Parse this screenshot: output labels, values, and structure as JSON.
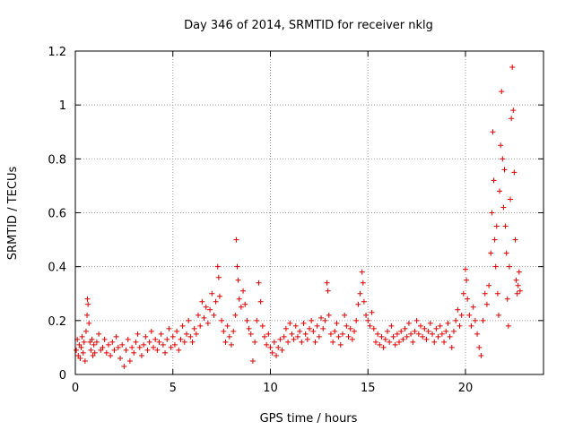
{
  "chart_data": {
    "type": "scatter",
    "title": "Day 346 of 2014, SRMTID for receiver nklg",
    "xlabel": "GPS time / hours",
    "ylabel": "SRMTID / TECUs",
    "xlim": [
      0,
      24
    ],
    "ylim": [
      0,
      1.2
    ],
    "x_ticks": [
      0,
      5,
      10,
      15,
      20
    ],
    "x_tick_labels": [
      "0",
      "5",
      "10",
      "15",
      "20"
    ],
    "y_ticks": [
      0,
      0.2,
      0.4,
      0.6,
      0.8,
      1,
      1.2
    ],
    "y_tick_labels": [
      "0",
      "0.2",
      "0.4",
      "0.6",
      "0.8",
      "1",
      "1.2"
    ],
    "grid": true,
    "marker": "+",
    "color": "#e00000",
    "series": [
      {
        "name": "SRMTID",
        "points": [
          [
            0.05,
            0.09
          ],
          [
            0.1,
            0.13
          ],
          [
            0.15,
            0.07
          ],
          [
            0.2,
            0.11
          ],
          [
            0.25,
            0.06
          ],
          [
            0.3,
            0.1
          ],
          [
            0.35,
            0.14
          ],
          [
            0.4,
            0.08
          ],
          [
            0.45,
            0.12
          ],
          [
            0.5,
            0.05
          ],
          [
            0.55,
            0.16
          ],
          [
            0.6,
            0.22
          ],
          [
            0.62,
            0.28
          ],
          [
            0.65,
            0.26
          ],
          [
            0.7,
            0.19
          ],
          [
            0.75,
            0.12
          ],
          [
            0.8,
            0.09
          ],
          [
            0.85,
            0.13
          ],
          [
            0.9,
            0.07
          ],
          [
            0.95,
            0.11
          ],
          [
            1.0,
            0.08
          ],
          [
            1.1,
            0.12
          ],
          [
            1.2,
            0.15
          ],
          [
            1.3,
            0.09
          ],
          [
            1.4,
            0.1
          ],
          [
            1.5,
            0.13
          ],
          [
            1.6,
            0.08
          ],
          [
            1.7,
            0.11
          ],
          [
            1.8,
            0.07
          ],
          [
            1.9,
            0.12
          ],
          [
            2.0,
            0.09
          ],
          [
            2.1,
            0.14
          ],
          [
            2.2,
            0.1
          ],
          [
            2.3,
            0.06
          ],
          [
            2.4,
            0.11
          ],
          [
            2.5,
            0.03
          ],
          [
            2.6,
            0.09
          ],
          [
            2.7,
            0.13
          ],
          [
            2.8,
            0.05
          ],
          [
            2.9,
            0.1
          ],
          [
            3.0,
            0.08
          ],
          [
            3.1,
            0.12
          ],
          [
            3.2,
            0.15
          ],
          [
            3.3,
            0.1
          ],
          [
            3.4,
            0.07
          ],
          [
            3.5,
            0.11
          ],
          [
            3.6,
            0.14
          ],
          [
            3.7,
            0.09
          ],
          [
            3.8,
            0.12
          ],
          [
            3.9,
            0.16
          ],
          [
            4.0,
            0.1
          ],
          [
            4.1,
            0.13
          ],
          [
            4.2,
            0.09
          ],
          [
            4.3,
            0.12
          ],
          [
            4.4,
            0.15
          ],
          [
            4.5,
            0.11
          ],
          [
            4.6,
            0.08
          ],
          [
            4.7,
            0.13
          ],
          [
            4.8,
            0.17
          ],
          [
            4.9,
            0.1
          ],
          [
            5.0,
            0.14
          ],
          [
            5.1,
            0.11
          ],
          [
            5.2,
            0.16
          ],
          [
            5.3,
            0.09
          ],
          [
            5.4,
            0.13
          ],
          [
            5.5,
            0.18
          ],
          [
            5.6,
            0.12
          ],
          [
            5.7,
            0.15
          ],
          [
            5.8,
            0.2
          ],
          [
            5.9,
            0.14
          ],
          [
            6.0,
            0.12
          ],
          [
            6.1,
            0.17
          ],
          [
            6.2,
            0.15
          ],
          [
            6.3,
            0.22
          ],
          [
            6.4,
            0.18
          ],
          [
            6.5,
            0.27
          ],
          [
            6.6,
            0.21
          ],
          [
            6.7,
            0.25
          ],
          [
            6.8,
            0.19
          ],
          [
            6.9,
            0.24
          ],
          [
            7.0,
            0.3
          ],
          [
            7.1,
            0.22
          ],
          [
            7.2,
            0.27
          ],
          [
            7.3,
            0.4
          ],
          [
            7.35,
            0.36
          ],
          [
            7.4,
            0.29
          ],
          [
            7.5,
            0.2
          ],
          [
            7.6,
            0.16
          ],
          [
            7.7,
            0.12
          ],
          [
            7.8,
            0.18
          ],
          [
            7.9,
            0.14
          ],
          [
            8.0,
            0.11
          ],
          [
            8.1,
            0.16
          ],
          [
            8.2,
            0.22
          ],
          [
            8.25,
            0.5
          ],
          [
            8.3,
            0.4
          ],
          [
            8.35,
            0.35
          ],
          [
            8.4,
            0.28
          ],
          [
            8.5,
            0.25
          ],
          [
            8.6,
            0.31
          ],
          [
            8.7,
            0.26
          ],
          [
            8.8,
            0.2
          ],
          [
            8.9,
            0.17
          ],
          [
            9.0,
            0.15
          ],
          [
            9.1,
            0.05
          ],
          [
            9.2,
            0.12
          ],
          [
            9.3,
            0.2
          ],
          [
            9.4,
            0.34
          ],
          [
            9.5,
            0.27
          ],
          [
            9.6,
            0.18
          ],
          [
            9.7,
            0.14
          ],
          [
            9.8,
            0.11
          ],
          [
            9.9,
            0.15
          ],
          [
            10.0,
            0.1
          ],
          [
            10.1,
            0.08
          ],
          [
            10.2,
            0.12
          ],
          [
            10.3,
            0.07
          ],
          [
            10.4,
            0.1
          ],
          [
            10.5,
            0.13
          ],
          [
            10.6,
            0.09
          ],
          [
            10.7,
            0.14
          ],
          [
            10.8,
            0.17
          ],
          [
            10.9,
            0.12
          ],
          [
            11.0,
            0.19
          ],
          [
            11.1,
            0.15
          ],
          [
            11.2,
            0.13
          ],
          [
            11.3,
            0.18
          ],
          [
            11.4,
            0.14
          ],
          [
            11.5,
            0.16
          ],
          [
            11.6,
            0.12
          ],
          [
            11.7,
            0.19
          ],
          [
            11.8,
            0.15
          ],
          [
            11.9,
            0.13
          ],
          [
            12.0,
            0.17
          ],
          [
            12.1,
            0.2
          ],
          [
            12.2,
            0.16
          ],
          [
            12.3,
            0.12
          ],
          [
            12.4,
            0.18
          ],
          [
            12.5,
            0.14
          ],
          [
            12.6,
            0.21
          ],
          [
            12.7,
            0.17
          ],
          [
            12.8,
            0.2
          ],
          [
            12.9,
            0.34
          ],
          [
            12.95,
            0.31
          ],
          [
            13.0,
            0.22
          ],
          [
            13.1,
            0.15
          ],
          [
            13.2,
            0.12
          ],
          [
            13.3,
            0.16
          ],
          [
            13.4,
            0.19
          ],
          [
            13.5,
            0.14
          ],
          [
            13.6,
            0.11
          ],
          [
            13.7,
            0.15
          ],
          [
            13.8,
            0.22
          ],
          [
            13.9,
            0.18
          ],
          [
            14.0,
            0.14
          ],
          [
            14.1,
            0.17
          ],
          [
            14.2,
            0.13
          ],
          [
            14.3,
            0.16
          ],
          [
            14.4,
            0.2
          ],
          [
            14.5,
            0.26
          ],
          [
            14.6,
            0.3
          ],
          [
            14.7,
            0.38
          ],
          [
            14.75,
            0.34
          ],
          [
            14.8,
            0.27
          ],
          [
            14.9,
            0.22
          ],
          [
            15.0,
            0.2
          ],
          [
            15.1,
            0.18
          ],
          [
            15.2,
            0.23
          ],
          [
            15.3,
            0.17
          ],
          [
            15.4,
            0.12
          ],
          [
            15.5,
            0.15
          ],
          [
            15.6,
            0.11
          ],
          [
            15.7,
            0.14
          ],
          [
            15.8,
            0.1
          ],
          [
            15.9,
            0.13
          ],
          [
            16.0,
            0.16
          ],
          [
            16.1,
            0.12
          ],
          [
            16.2,
            0.18
          ],
          [
            16.3,
            0.14
          ],
          [
            16.4,
            0.11
          ],
          [
            16.5,
            0.15
          ],
          [
            16.6,
            0.12
          ],
          [
            16.7,
            0.16
          ],
          [
            16.8,
            0.13
          ],
          [
            16.9,
            0.17
          ],
          [
            17.0,
            0.14
          ],
          [
            17.1,
            0.19
          ],
          [
            17.2,
            0.15
          ],
          [
            17.3,
            0.12
          ],
          [
            17.4,
            0.16
          ],
          [
            17.5,
            0.2
          ],
          [
            17.6,
            0.15
          ],
          [
            17.7,
            0.18
          ],
          [
            17.8,
            0.14
          ],
          [
            17.9,
            0.17
          ],
          [
            18.0,
            0.13
          ],
          [
            18.1,
            0.16
          ],
          [
            18.2,
            0.19
          ],
          [
            18.3,
            0.15
          ],
          [
            18.4,
            0.12
          ],
          [
            18.5,
            0.17
          ],
          [
            18.6,
            0.14
          ],
          [
            18.7,
            0.18
          ],
          [
            18.8,
            0.15
          ],
          [
            18.9,
            0.12
          ],
          [
            19.0,
            0.16
          ],
          [
            19.1,
            0.19
          ],
          [
            19.2,
            0.14
          ],
          [
            19.3,
            0.1
          ],
          [
            19.4,
            0.16
          ],
          [
            19.5,
            0.2
          ],
          [
            19.6,
            0.24
          ],
          [
            19.7,
            0.18
          ],
          [
            19.8,
            0.22
          ],
          [
            19.9,
            0.3
          ],
          [
            20.0,
            0.39
          ],
          [
            20.05,
            0.35
          ],
          [
            20.1,
            0.28
          ],
          [
            20.2,
            0.22
          ],
          [
            20.3,
            0.18
          ],
          [
            20.4,
            0.25
          ],
          [
            20.5,
            0.2
          ],
          [
            20.6,
            0.15
          ],
          [
            20.7,
            0.1
          ],
          [
            20.8,
            0.07
          ],
          [
            20.9,
            0.2
          ],
          [
            21.0,
            0.3
          ],
          [
            21.1,
            0.26
          ],
          [
            21.2,
            0.33
          ],
          [
            21.3,
            0.45
          ],
          [
            21.35,
            0.6
          ],
          [
            21.4,
            0.9
          ],
          [
            21.45,
            0.72
          ],
          [
            21.5,
            0.5
          ],
          [
            21.55,
            0.4
          ],
          [
            21.6,
            0.55
          ],
          [
            21.65,
            0.3
          ],
          [
            21.7,
            0.22
          ],
          [
            21.75,
            0.68
          ],
          [
            21.8,
            0.85
          ],
          [
            21.85,
            1.05
          ],
          [
            21.9,
            0.8
          ],
          [
            21.95,
            0.62
          ],
          [
            22.0,
            0.76
          ],
          [
            22.05,
            0.55
          ],
          [
            22.1,
            0.45
          ],
          [
            22.15,
            0.28
          ],
          [
            22.2,
            0.18
          ],
          [
            22.25,
            0.4
          ],
          [
            22.3,
            0.65
          ],
          [
            22.35,
            0.95
          ],
          [
            22.4,
            1.14
          ],
          [
            22.45,
            0.98
          ],
          [
            22.5,
            0.75
          ],
          [
            22.55,
            0.5
          ],
          [
            22.6,
            0.35
          ],
          [
            22.65,
            0.3
          ],
          [
            22.7,
            0.33
          ],
          [
            22.75,
            0.38
          ],
          [
            22.8,
            0.31
          ]
        ]
      }
    ]
  }
}
